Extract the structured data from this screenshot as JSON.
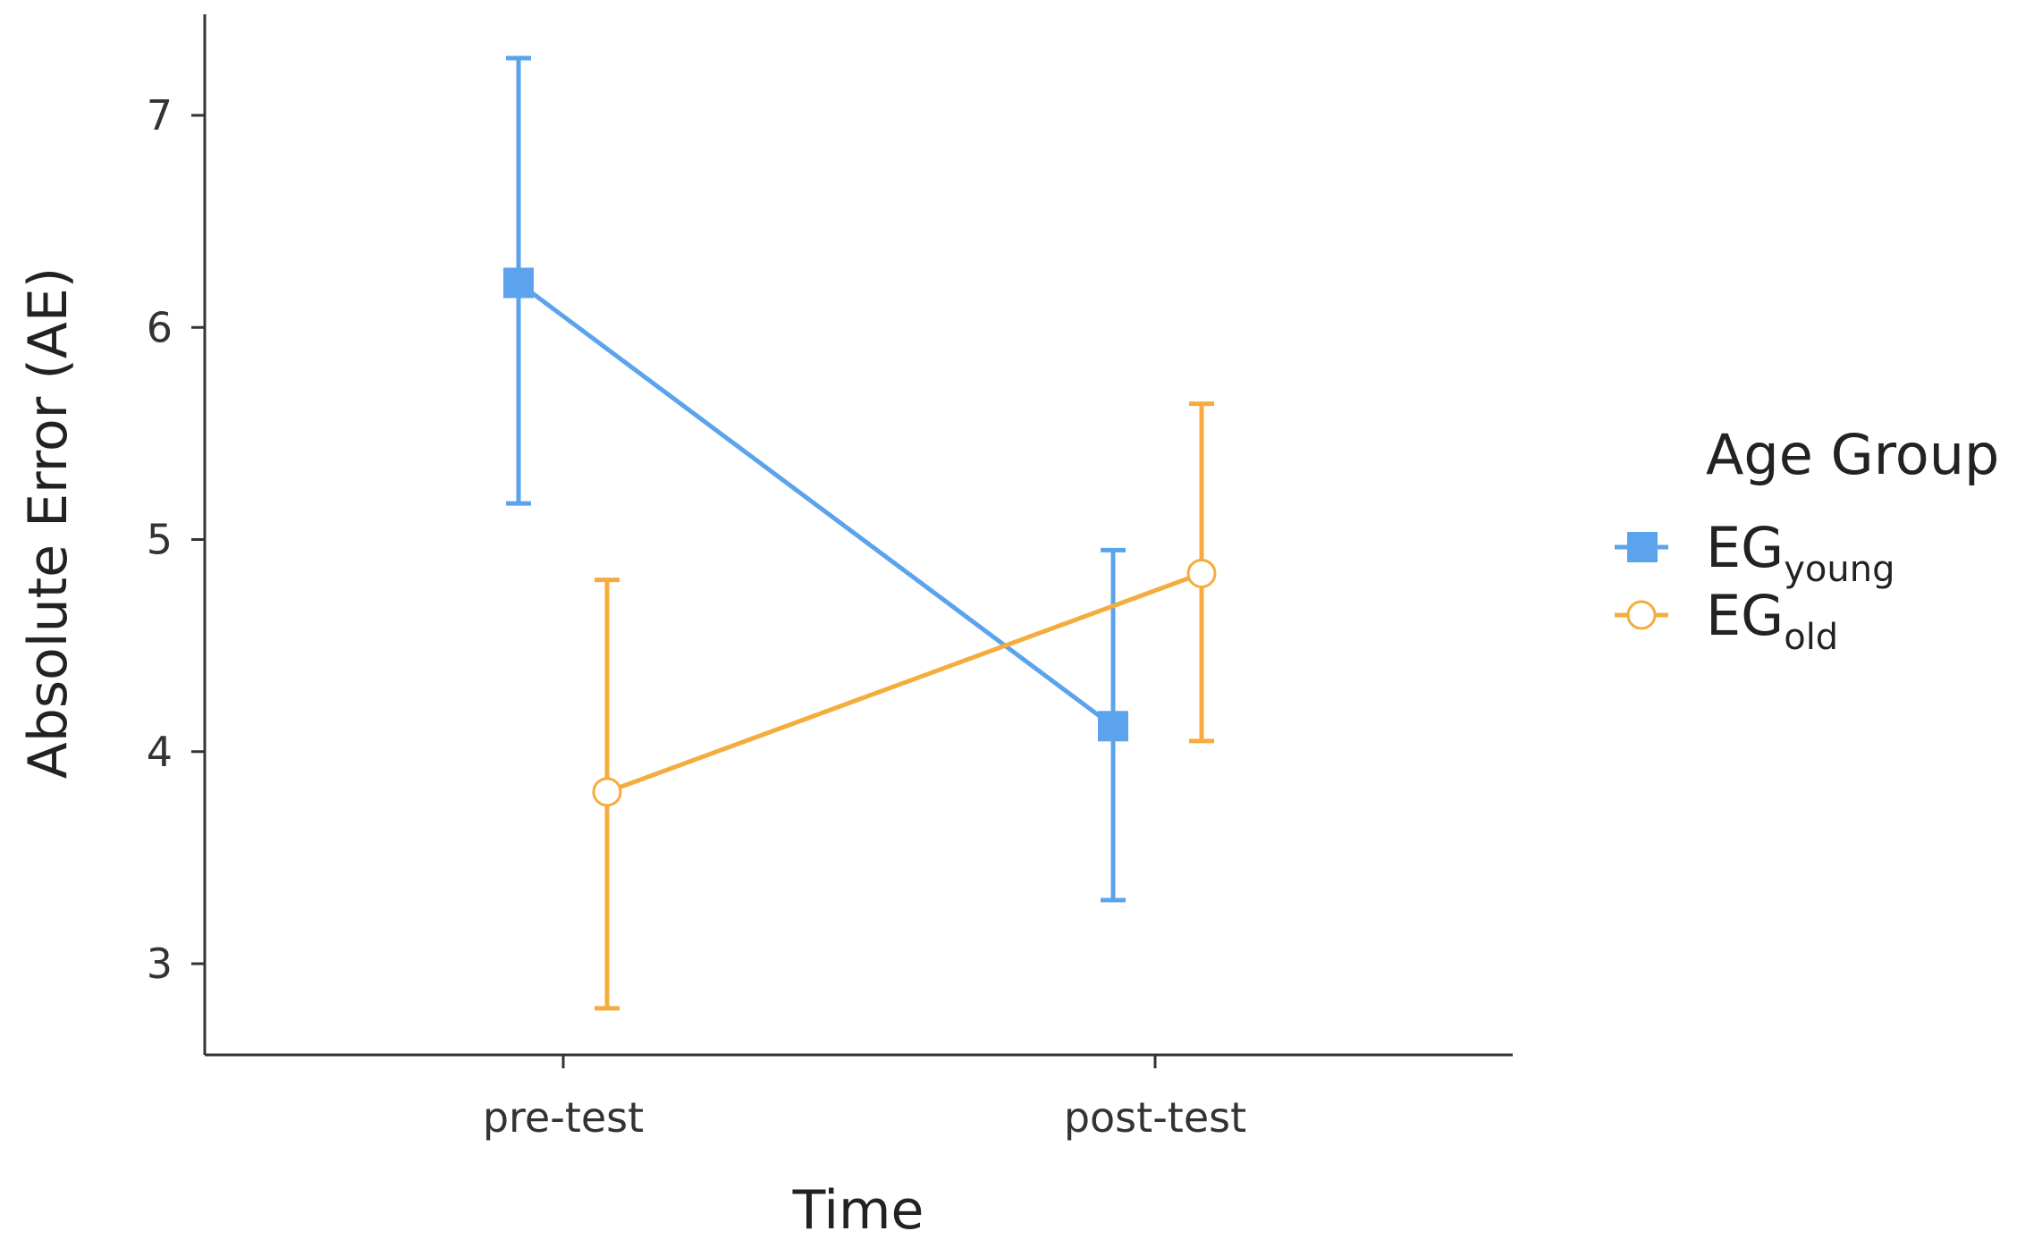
{
  "chart_data": {
    "type": "line",
    "xlabel": "Time",
    "ylabel": "Absolute Error (AE)",
    "categories": [
      "pre-test",
      "post-test"
    ],
    "ylim": [
      2.6,
      7.5
    ],
    "yticks": [
      3,
      4,
      5,
      6,
      7
    ],
    "grid": false,
    "legend": {
      "title": "Age Group",
      "placement": "right"
    },
    "series": [
      {
        "name": "EGyoung",
        "label_main": "EG",
        "label_sub": "young",
        "color": "#5BA3EC",
        "marker": "square-filled",
        "values": [
          6.21,
          4.12
        ],
        "error_low": [
          5.17,
          3.3
        ],
        "error_high": [
          7.27,
          4.95
        ]
      },
      {
        "name": "EGold",
        "label_main": "EG",
        "label_sub": "old",
        "color": "#F5AC3D",
        "marker": "circle-open",
        "values": [
          3.81,
          4.84
        ],
        "error_low": [
          2.79,
          4.05
        ],
        "error_high": [
          4.81,
          5.64
        ]
      }
    ]
  }
}
